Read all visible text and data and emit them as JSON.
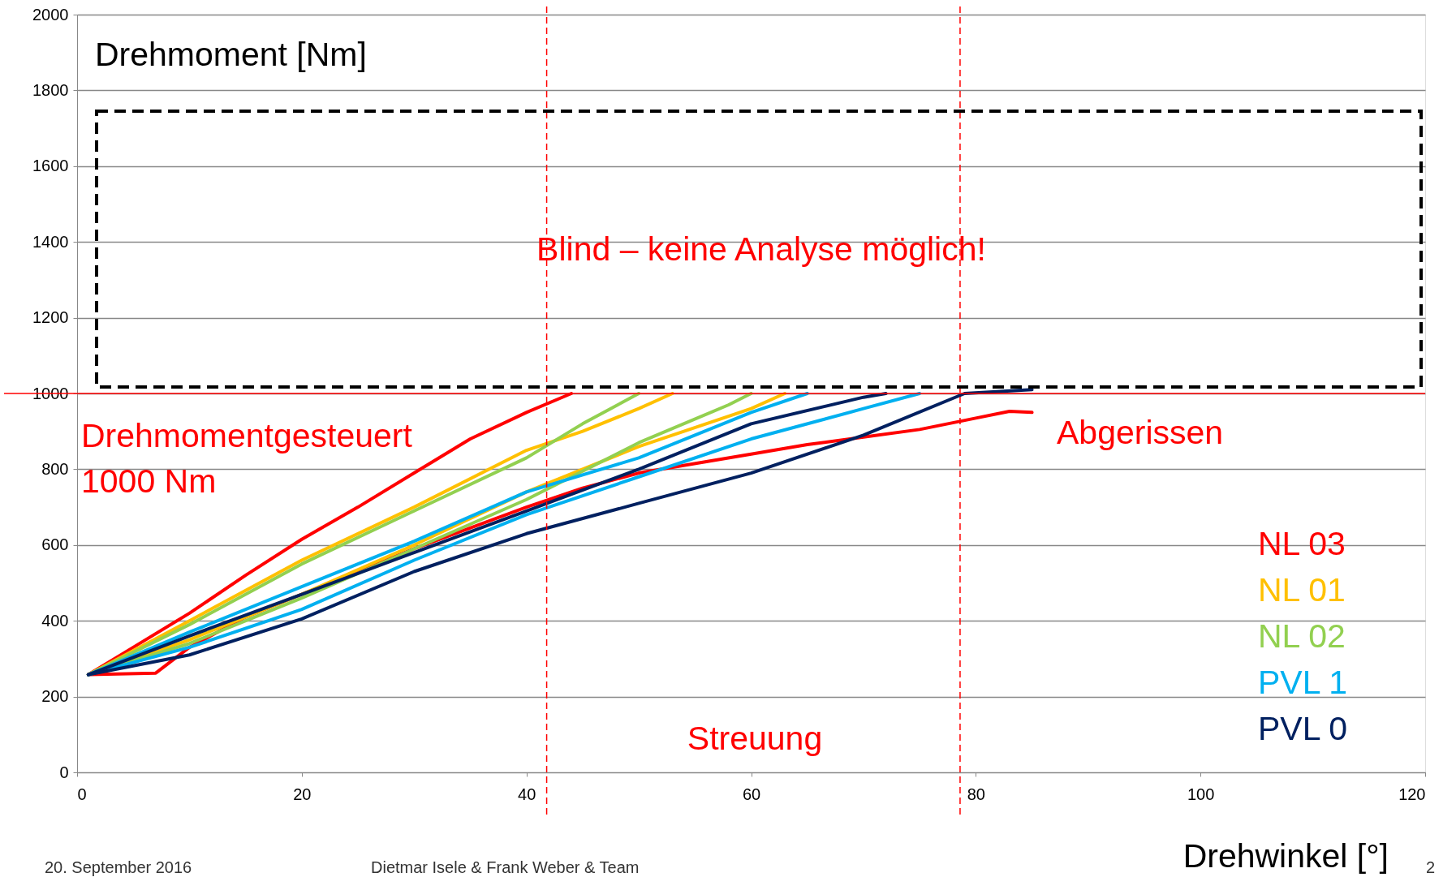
{
  "chart_data": {
    "type": "line",
    "xlabel": "Drehwinkel [°]",
    "ylabel": "Drehmoment [Nm]",
    "xlim": [
      0,
      120
    ],
    "xticks": [
      0,
      20,
      40,
      60,
      80,
      100,
      120
    ],
    "ylim": [
      0,
      2000
    ],
    "yticks": [
      0,
      200,
      400,
      600,
      800,
      1000,
      1200,
      1400,
      1600,
      1800,
      2000
    ],
    "grid": "y",
    "legend": "bottom right",
    "line_style": "solid",
    "marker": "none",
    "series": [
      {
        "name": "NL 03",
        "color": "#ff0000",
        "x": [
          1,
          5,
          10,
          15,
          20,
          25,
          30,
          35,
          40,
          44
        ],
        "values": [
          258,
          330,
          420,
          520,
          615,
          700,
          790,
          880,
          950,
          1000
        ]
      },
      {
        "color": "#ff0000",
        "x": [
          1,
          7,
          10,
          15,
          20,
          30,
          40,
          45,
          50,
          60,
          65,
          70,
          75,
          80,
          83,
          85
        ],
        "values": [
          258,
          262,
          330,
          410,
          470,
          590,
          700,
          750,
          790,
          840,
          865,
          885,
          905,
          935,
          953,
          950
        ]
      },
      {
        "name": "NL 01",
        "color": "#ffc000",
        "x": [
          1,
          10,
          20,
          30,
          40,
          45,
          50,
          53
        ],
        "values": [
          258,
          400,
          560,
          700,
          850,
          900,
          960,
          1000
        ]
      },
      {
        "color": "#ffc000",
        "x": [
          1,
          10,
          20,
          30,
          40,
          50,
          60,
          63
        ],
        "values": [
          258,
          350,
          470,
          600,
          740,
          860,
          960,
          1000
        ]
      },
      {
        "name": "NL 02",
        "color": "#92d050",
        "x": [
          1,
          10,
          20,
          30,
          40,
          45,
          50
        ],
        "values": [
          258,
          390,
          550,
          690,
          830,
          920,
          1000
        ]
      },
      {
        "color": "#92d050",
        "x": [
          1,
          10,
          20,
          30,
          40,
          50,
          58,
          60
        ],
        "values": [
          258,
          340,
          460,
          590,
          720,
          870,
          970,
          1000
        ]
      },
      {
        "name": "PVL 1",
        "color": "#00b0f0",
        "x": [
          1,
          10,
          20,
          30,
          40,
          50,
          60,
          65
        ],
        "values": [
          258,
          370,
          490,
          610,
          740,
          830,
          950,
          1000
        ]
      },
      {
        "color": "#00b0f0",
        "x": [
          1,
          10,
          20,
          30,
          40,
          50,
          60,
          70,
          75
        ],
        "values": [
          258,
          330,
          430,
          560,
          680,
          780,
          880,
          960,
          1000
        ]
      },
      {
        "name": "PVL 0",
        "color": "#002060",
        "x": [
          1,
          10,
          20,
          30,
          40,
          50,
          60,
          70,
          72
        ],
        "values": [
          258,
          360,
          470,
          580,
          690,
          800,
          920,
          990,
          1000
        ]
      },
      {
        "color": "#002060",
        "x": [
          1,
          10,
          20,
          30,
          40,
          50,
          60,
          70,
          79,
          85
        ],
        "values": [
          258,
          310,
          405,
          530,
          630,
          710,
          790,
          890,
          1000,
          1010
        ]
      }
    ],
    "ref_lines": [
      {
        "axis": "y",
        "value": 1000,
        "label": "Drehmomentgesteuert\n1000  Nm",
        "color": "#ff0000",
        "line_style": "solid"
      },
      {
        "axis": "x",
        "value": 41.8,
        "color": "#ff0000",
        "line_style": "dashed"
      },
      {
        "axis": "x",
        "value": 78.6,
        "color": "#ff0000",
        "line_style": "dashed"
      }
    ],
    "annotations": [
      "Blind – keine Analyse möglich!",
      "Abgerissen",
      "Streuung",
      "20. September 2016",
      "Dietmar Isele & Frank Weber & Team",
      "2"
    ]
  }
}
